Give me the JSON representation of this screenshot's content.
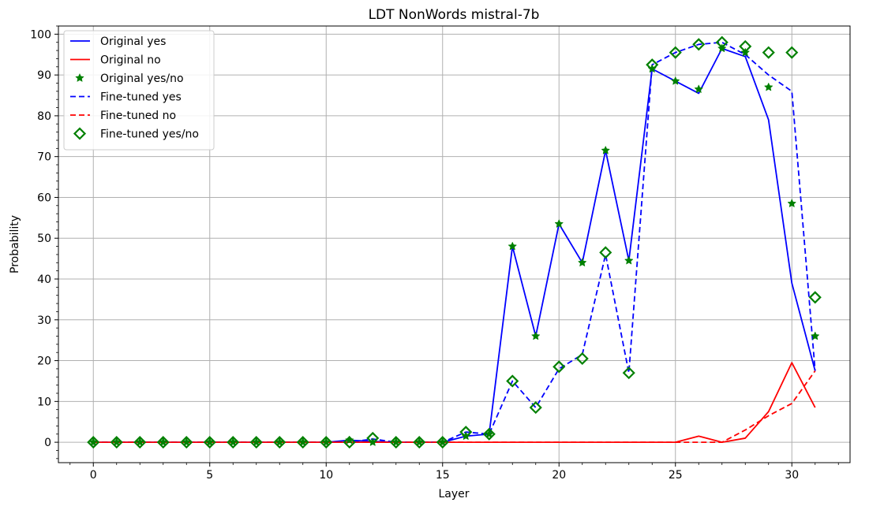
{
  "chart_data": {
    "type": "line",
    "title": "LDT NonWords mistral-7b",
    "xlabel": "Layer",
    "ylabel": "Probability",
    "xlim": [
      -1.5,
      32.5
    ],
    "ylim": [
      -5,
      102
    ],
    "xticks": [
      0,
      5,
      10,
      15,
      20,
      25,
      30
    ],
    "yticks": [
      0,
      10,
      20,
      30,
      40,
      50,
      60,
      70,
      80,
      90,
      100
    ],
    "x_minor_step": 1,
    "y_minor_step": 2,
    "grid": true,
    "legend_position": "top-left",
    "x": [
      0,
      1,
      2,
      3,
      4,
      5,
      6,
      7,
      8,
      9,
      10,
      11,
      12,
      13,
      14,
      15,
      16,
      17,
      18,
      19,
      20,
      21,
      22,
      23,
      24,
      25,
      26,
      27,
      28,
      29,
      30,
      31
    ],
    "series": [
      {
        "name": "Original yes",
        "style": "solid-line",
        "color": "#0000ff",
        "values": [
          0,
          0,
          0,
          0,
          0,
          0,
          0,
          0,
          0,
          0,
          0,
          0.5,
          0.2,
          0,
          0,
          0,
          1.5,
          2,
          48,
          26,
          53.5,
          44,
          71.5,
          44.5,
          91.5,
          88.5,
          85.5,
          96.5,
          94.5,
          79,
          39,
          17.5
        ]
      },
      {
        "name": "Original no",
        "style": "solid-line",
        "color": "#ff0000",
        "values": [
          0,
          0,
          0,
          0,
          0,
          0,
          0,
          0,
          0,
          0,
          0,
          0,
          0,
          0,
          0,
          0,
          0,
          0,
          0,
          0,
          0,
          0,
          0,
          0,
          0,
          0,
          1.5,
          0,
          1,
          7.5,
          19.5,
          8.5
        ]
      },
      {
        "name": "Original yes/no",
        "style": "star-markers",
        "color": "#008000",
        "values": [
          0,
          0,
          0,
          0,
          0,
          0,
          0,
          0,
          0,
          0,
          0,
          0.5,
          0,
          0,
          0,
          0,
          1.5,
          2,
          48,
          26,
          53.5,
          44,
          71.5,
          44.5,
          91.5,
          88.5,
          86.5,
          96.5,
          95.5,
          87,
          58.5,
          26
        ]
      },
      {
        "name": "Fine-tuned yes",
        "style": "dashed-line",
        "color": "#0000ff",
        "values": [
          0,
          0,
          0,
          0,
          0,
          0,
          0,
          0,
          0,
          0,
          0,
          0,
          0.8,
          0,
          0,
          0,
          2.5,
          2,
          15,
          8.5,
          18,
          21.5,
          46,
          17,
          92.5,
          95.5,
          97.5,
          98,
          95,
          90,
          86,
          17.5
        ]
      },
      {
        "name": "Fine-tuned no",
        "style": "dashed-line",
        "color": "#ff0000",
        "values": [
          0,
          0,
          0,
          0,
          0,
          0,
          0,
          0,
          0,
          0,
          0,
          0,
          0,
          0,
          0,
          0,
          0,
          0,
          0,
          0,
          0,
          0,
          0,
          0,
          0,
          0,
          0,
          0,
          3,
          6.5,
          9.5,
          17.5
        ]
      },
      {
        "name": "Fine-tuned yes/no",
        "style": "diamond-markers",
        "color": "#008000",
        "values": [
          0,
          0,
          0,
          0,
          0,
          0,
          0,
          0,
          0,
          0,
          0,
          0,
          1,
          0,
          0,
          0,
          2.5,
          2,
          15,
          8.5,
          18.5,
          20.5,
          46.5,
          17,
          92.5,
          95.5,
          97.5,
          98,
          97,
          95.5,
          95.5,
          35.5
        ]
      }
    ]
  }
}
